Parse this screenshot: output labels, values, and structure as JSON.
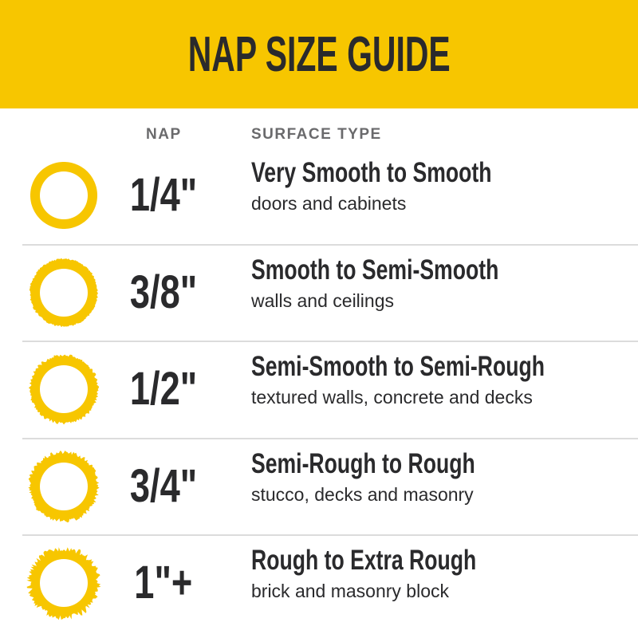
{
  "header": {
    "title": "NAP SIZE GUIDE"
  },
  "columns": {
    "nap": "NAP",
    "surface": "SURFACE TYPE"
  },
  "colors": {
    "accent": "#f7c600",
    "text": "#2a2a2c",
    "muted": "#6a6a6c"
  },
  "rows": [
    {
      "nap": "1/4\"",
      "title": "Very Smooth to Smooth",
      "desc": "doors and cabinets",
      "icon": "smooth-ring-icon"
    },
    {
      "nap": "3/8\"",
      "title": "Smooth to Semi-Smooth",
      "desc": "walls and ceilings",
      "icon": "slightly-rough-ring-icon"
    },
    {
      "nap": "1/2\"",
      "title": "Semi-Smooth to Semi-Rough",
      "desc": "textured walls, concrete and decks",
      "icon": "semi-rough-ring-icon"
    },
    {
      "nap": "3/4\"",
      "title": "Semi-Rough to Rough",
      "desc": "stucco, decks and masonry",
      "icon": "rough-ring-icon"
    },
    {
      "nap": "1\"+",
      "title": "Rough to Extra Rough",
      "desc": "brick and masonry block",
      "icon": "extra-rough-ring-icon"
    }
  ]
}
